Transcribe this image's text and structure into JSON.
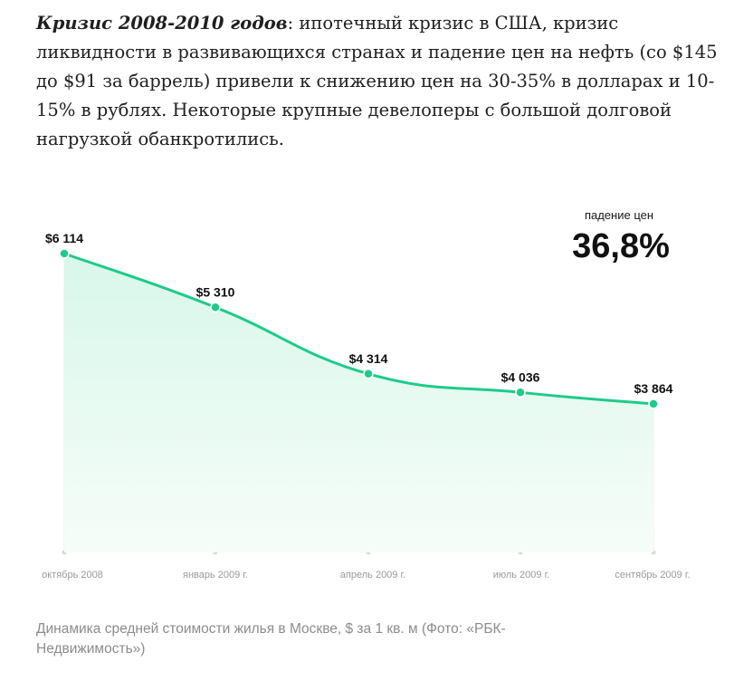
{
  "article": {
    "lead": "Кризис 2008-2010 годов",
    "text": ": ипотечный кризис в США, кризис ликвидности в развивающихся странах и падение цен на нефть (со $145 до $91 за баррель) привели к снижению цен на 30-35% в долларах и 10-15% в рублях. Некоторые крупные девелоперы с большой долговой нагрузкой обанкротились."
  },
  "chart_data": {
    "type": "area",
    "categories": [
      "октябрь 2008",
      "январь 2009 г.",
      "апрель 2009 г.",
      "июль 2009 г.",
      "сентябрь 2009 г."
    ],
    "values": [
      6114,
      5310,
      4314,
      4036,
      3864
    ],
    "data_labels": [
      "$6 114",
      "$5 310",
      "$4 314",
      "$4 036",
      "$3 864"
    ],
    "annotation": {
      "label": "падение цен",
      "value": "36,8%"
    },
    "ylim": [
      0,
      6114
    ],
    "grid": "vertical",
    "colors": {
      "line": "#1fcb8a",
      "fill_top": "#d8f7ea",
      "fill_bottom": "#f6fdf9",
      "gridline": "#ececec"
    }
  },
  "caption": "Динамика средней стоимости жилья в Москве, $ за 1 кв. м (Фото: «РБК-Недвижимость»)"
}
